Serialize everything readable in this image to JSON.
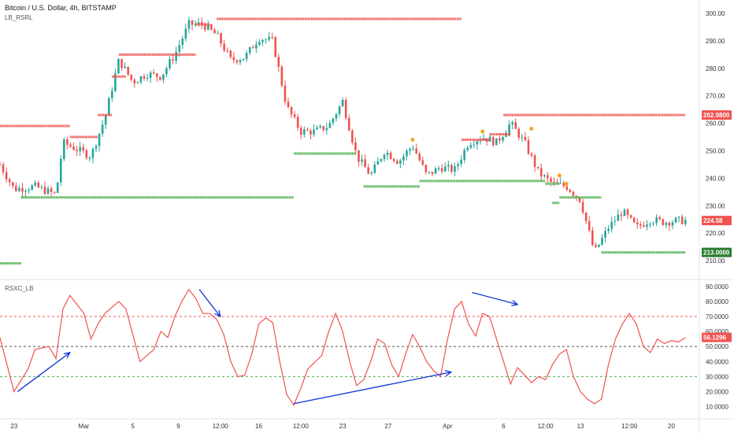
{
  "header": {
    "title": "Bitcoin / U.S. Dollar, 4h, BITSTAMP",
    "indicator": "LB_RSRL",
    "oscillator": "RSXC_LB"
  },
  "colors": {
    "up": "#26a69a",
    "down": "#ef5350",
    "resistance": "#ef5350",
    "support": "#4caf50",
    "rsi": "#ef5350",
    "arrow": "#1034d6",
    "price_badge": "#ef5350",
    "orange_dot": "#f5a623"
  },
  "chart_data": [
    {
      "type": "candlestick",
      "title": "Bitcoin / U.S. Dollar, 4h, BITSTAMP",
      "ylim": [
        206,
        302
      ],
      "y_ticks": [
        "300.00",
        "290.00",
        "280.00",
        "270.00",
        "260.00",
        "250.00",
        "240.00",
        "230.00",
        "220.00",
        "210.00"
      ],
      "x_ticks": [
        "23",
        "Mar",
        "5",
        "9",
        "12:00",
        "16",
        "12:00",
        "23",
        "27",
        "Apr",
        "6",
        "12:00",
        "13",
        "12:00",
        "20"
      ],
      "close_path": [
        [
          0,
          245
        ],
        [
          0.02,
          236
        ],
        [
          0.05,
          237
        ],
        [
          0.08,
          234
        ],
        [
          0.09,
          253
        ],
        [
          0.13,
          248
        ],
        [
          0.15,
          262
        ],
        [
          0.17,
          283
        ],
        [
          0.19,
          275
        ],
        [
          0.21,
          278
        ],
        [
          0.23,
          277
        ],
        [
          0.25,
          285
        ],
        [
          0.27,
          296
        ],
        [
          0.29,
          296
        ],
        [
          0.31,
          292
        ],
        [
          0.33,
          283
        ],
        [
          0.35,
          284
        ],
        [
          0.37,
          291
        ],
        [
          0.39,
          290
        ],
        [
          0.41,
          266
        ],
        [
          0.43,
          257
        ],
        [
          0.45,
          257
        ],
        [
          0.47,
          259
        ],
        [
          0.49,
          268
        ],
        [
          0.51,
          248
        ],
        [
          0.53,
          241
        ],
        [
          0.55,
          250
        ],
        [
          0.57,
          246
        ],
        [
          0.59,
          252
        ],
        [
          0.61,
          241
        ],
        [
          0.63,
          244
        ],
        [
          0.65,
          243
        ],
        [
          0.67,
          253
        ],
        [
          0.69,
          255
        ],
        [
          0.71,
          253
        ],
        [
          0.73,
          260
        ],
        [
          0.75,
          253
        ],
        [
          0.77,
          242
        ],
        [
          0.79,
          238
        ],
        [
          0.81,
          237
        ],
        [
          0.83,
          232
        ],
        [
          0.85,
          213
        ],
        [
          0.87,
          222
        ],
        [
          0.89,
          228
        ],
        [
          0.91,
          222
        ],
        [
          0.93,
          225
        ],
        [
          0.95,
          224
        ],
        [
          0.97,
          224.58
        ]
      ],
      "resistance_levels": [
        {
          "x": [
            0.0,
            0.1
          ],
          "y": 259
        },
        {
          "x": [
            0.1,
            0.14
          ],
          "y": 255
        },
        {
          "x": [
            0.14,
            0.16
          ],
          "y": 263
        },
        {
          "x": [
            0.16,
            0.18
          ],
          "y": 277
        },
        {
          "x": [
            0.17,
            0.28
          ],
          "y": 285
        },
        {
          "x": [
            0.28,
            0.3
          ],
          "y": 296
        },
        {
          "x": [
            0.31,
            0.66
          ],
          "y": 298
        },
        {
          "x": [
            0.66,
            0.7
          ],
          "y": 254
        },
        {
          "x": [
            0.7,
            0.73
          ],
          "y": 256
        },
        {
          "x": [
            0.72,
            0.98
          ],
          "y": 263
        }
      ],
      "support_levels": [
        {
          "x": [
            0.0,
            0.03
          ],
          "y": 209
        },
        {
          "x": [
            0.03,
            0.42
          ],
          "y": 233
        },
        {
          "x": [
            0.42,
            0.51
          ],
          "y": 249
        },
        {
          "x": [
            0.52,
            0.6
          ],
          "y": 237
        },
        {
          "x": [
            0.6,
            0.78
          ],
          "y": 239
        },
        {
          "x": [
            0.78,
            0.8
          ],
          "y": 238
        },
        {
          "x": [
            0.79,
            0.8
          ],
          "y": 231
        },
        {
          "x": [
            0.8,
            0.86
          ],
          "y": 233
        },
        {
          "x": [
            0.86,
            0.98
          ],
          "y": 213
        }
      ],
      "current_price": "224.58",
      "resistance_label": "262.9800",
      "support_label": "213.0000"
    },
    {
      "type": "line",
      "title": "RSXC_LB",
      "ylim": [
        4,
        92
      ],
      "y_ticks": [
        "90.0000",
        "80.0000",
        "70.0000",
        "60.0000",
        "50.0000",
        "40.0000",
        "30.0000",
        "20.0000",
        "10.0000"
      ],
      "levels": [
        70,
        50,
        30
      ],
      "current_value": "56.1296",
      "series": [
        {
          "values": [
            [
              0,
              56
            ],
            [
              0.02,
              20
            ],
            [
              0.04,
              35
            ],
            [
              0.05,
              48
            ],
            [
              0.07,
              50
            ],
            [
              0.08,
              42
            ],
            [
              0.09,
              75
            ],
            [
              0.1,
              84
            ],
            [
              0.12,
              72
            ],
            [
              0.13,
              55
            ],
            [
              0.14,
              65
            ],
            [
              0.15,
              72
            ],
            [
              0.17,
              80
            ],
            [
              0.18,
              75
            ],
            [
              0.19,
              58
            ],
            [
              0.2,
              40
            ],
            [
              0.22,
              48
            ],
            [
              0.23,
              60
            ],
            [
              0.24,
              56
            ],
            [
              0.25,
              70
            ],
            [
              0.26,
              80
            ],
            [
              0.27,
              88
            ],
            [
              0.28,
              82
            ],
            [
              0.29,
              72
            ],
            [
              0.3,
              72
            ],
            [
              0.31,
              68
            ],
            [
              0.32,
              58
            ],
            [
              0.33,
              40
            ],
            [
              0.34,
              30
            ],
            [
              0.35,
              31
            ],
            [
              0.36,
              45
            ],
            [
              0.37,
              65
            ],
            [
              0.38,
              69
            ],
            [
              0.39,
              66
            ],
            [
              0.4,
              40
            ],
            [
              0.41,
              18
            ],
            [
              0.42,
              11
            ],
            [
              0.43,
              22
            ],
            [
              0.44,
              35
            ],
            [
              0.46,
              44
            ],
            [
              0.47,
              60
            ],
            [
              0.48,
              72
            ],
            [
              0.49,
              60
            ],
            [
              0.5,
              40
            ],
            [
              0.51,
              24
            ],
            [
              0.52,
              28
            ],
            [
              0.53,
              40
            ],
            [
              0.54,
              55
            ],
            [
              0.55,
              52
            ],
            [
              0.56,
              38
            ],
            [
              0.57,
              30
            ],
            [
              0.58,
              45
            ],
            [
              0.59,
              58
            ],
            [
              0.6,
              50
            ],
            [
              0.61,
              40
            ],
            [
              0.62,
              34
            ],
            [
              0.63,
              30
            ],
            [
              0.64,
              55
            ],
            [
              0.65,
              75
            ],
            [
              0.66,
              80
            ],
            [
              0.67,
              65
            ],
            [
              0.68,
              57
            ],
            [
              0.69,
              72
            ],
            [
              0.7,
              70
            ],
            [
              0.71,
              55
            ],
            [
              0.72,
              40
            ],
            [
              0.73,
              25
            ],
            [
              0.74,
              36
            ],
            [
              0.75,
              31
            ],
            [
              0.76,
              26
            ],
            [
              0.77,
              30
            ],
            [
              0.78,
              28
            ],
            [
              0.79,
              38
            ],
            [
              0.8,
              45
            ],
            [
              0.81,
              48
            ],
            [
              0.82,
              30
            ],
            [
              0.83,
              20
            ],
            [
              0.84,
              15
            ],
            [
              0.85,
              12
            ],
            [
              0.86,
              15
            ],
            [
              0.87,
              38
            ],
            [
              0.88,
              55
            ],
            [
              0.89,
              65
            ],
            [
              0.9,
              72
            ],
            [
              0.91,
              65
            ],
            [
              0.92,
              50
            ],
            [
              0.93,
              46
            ],
            [
              0.94,
              55
            ],
            [
              0.95,
              52
            ],
            [
              0.96,
              54
            ],
            [
              0.97,
              53
            ],
            [
              0.98,
              56
            ]
          ]
        }
      ]
    }
  ]
}
